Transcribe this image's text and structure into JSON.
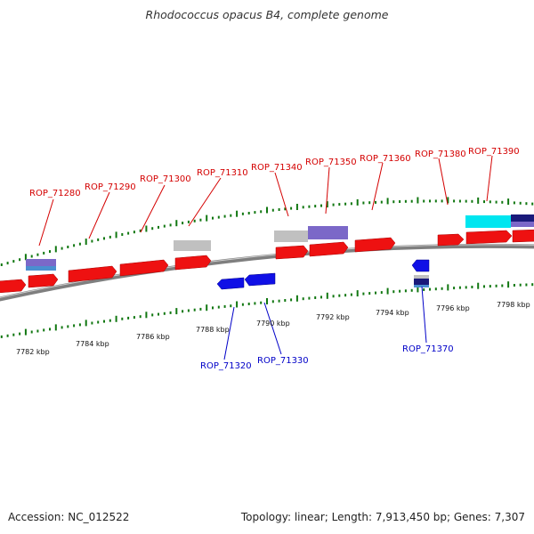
{
  "title": "Rhodococcus opacus B4, complete genome",
  "footer": {
    "accession": "Accession: NC_012522",
    "stats": "Topology: linear; Length: 7,913,450 bp; Genes: 7,307"
  },
  "colors": {
    "forward_gene": "#ee1111",
    "reverse_gene": "#1010e6",
    "backbone": "#7f7f7f",
    "ticks": "#117711",
    "pseudo_gray": "#c0c0c0",
    "feature_purple": "#7b68c8",
    "feature_cyan": "#00e6f0",
    "feature_navy": "#1a1a7a",
    "feature_steel": "#4a8fd0"
  },
  "scale": {
    "labels": [
      "7782 kbp",
      "7784 kbp",
      "7786 kbp",
      "7788 kbp",
      "7790 kbp",
      "7792 kbp",
      "7794 kbp",
      "7796 kbp",
      "7798 kbp"
    ]
  },
  "forward_labels": [
    "ROP_71280",
    "ROP_71290",
    "ROP_71300",
    "ROP_71310",
    "ROP_71340",
    "ROP_71350",
    "ROP_71360",
    "ROP_71380",
    "ROP_71390"
  ],
  "reverse_labels": [
    "ROP_71320",
    "ROP_71330",
    "ROP_71370"
  ]
}
